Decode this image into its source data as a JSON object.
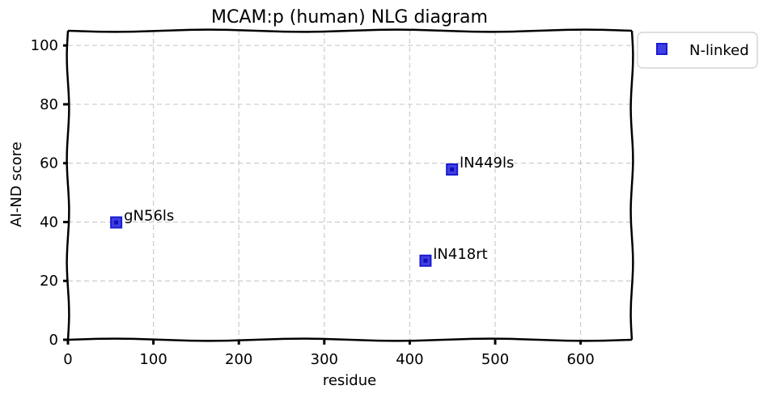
{
  "chart_data": {
    "type": "scatter",
    "title": "MCAM:p (human) NLG diagram",
    "xlabel": "residue",
    "ylabel": "AI-ND score",
    "xlim": [
      0,
      660
    ],
    "ylim": [
      0,
      105
    ],
    "xticks": [
      0,
      100,
      200,
      300,
      400,
      500,
      600
    ],
    "yticks": [
      0,
      20,
      40,
      60,
      80,
      100
    ],
    "grid": true,
    "legend_position": "outside-top-right",
    "series": [
      {
        "name": "N-linked",
        "color": "#2a2ae0",
        "marker": "square",
        "points": [
          {
            "x": 56,
            "y": 40,
            "label": "gN56ls"
          },
          {
            "x": 418,
            "y": 27,
            "label": "lN418rt"
          },
          {
            "x": 449,
            "y": 58,
            "label": "lN449ls"
          }
        ]
      }
    ]
  }
}
